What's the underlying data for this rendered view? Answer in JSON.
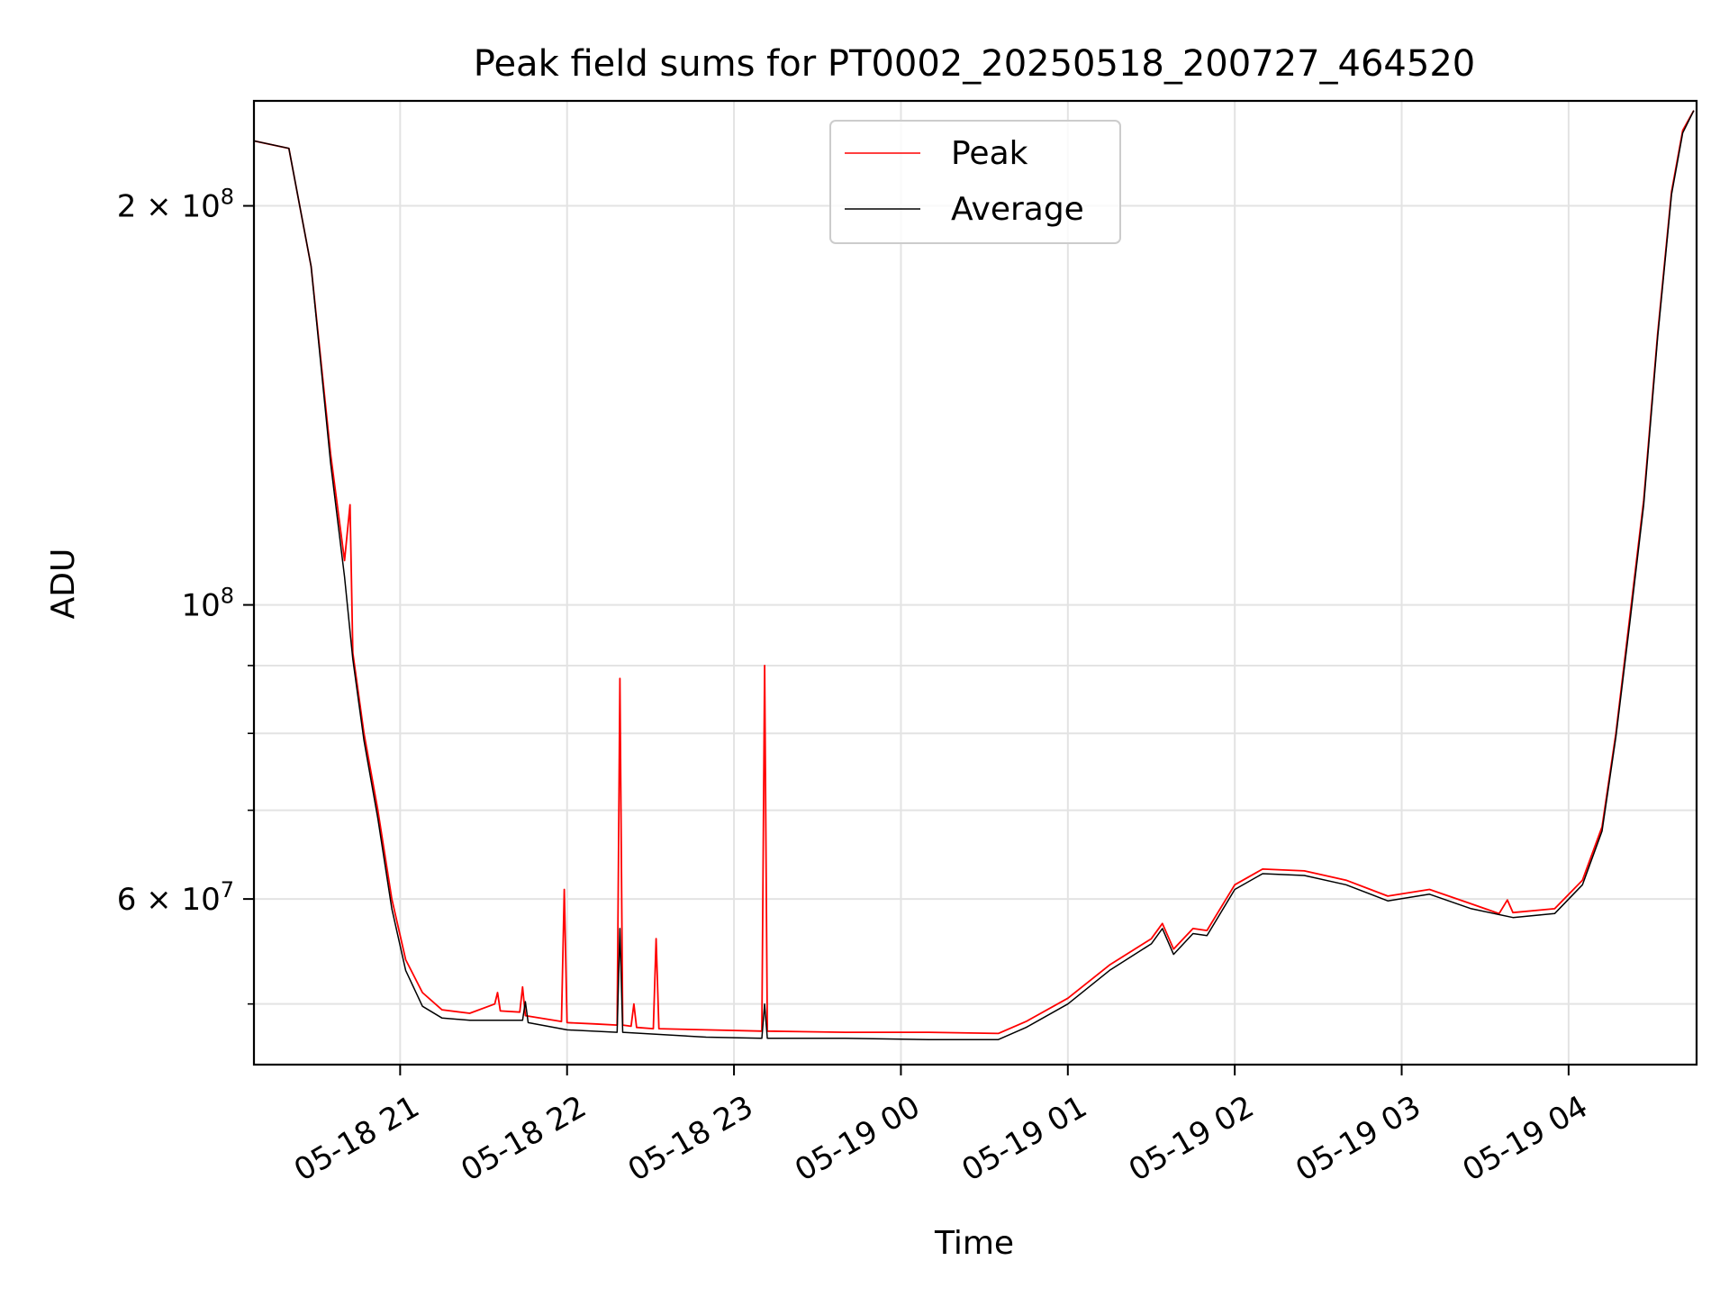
{
  "chart_data": {
    "type": "line",
    "title": "Peak field sums for PT0002_20250518_200727_464520",
    "xlabel": "Time",
    "ylabel": "ADU",
    "yscale": "log",
    "ylim": [
      45000000,
      240000000
    ],
    "xlim": [
      "2025-05-18 20:07:27",
      "2025-05-19 04:46:00"
    ],
    "grid": true,
    "legend_position": "top-center",
    "x_ticks": [
      {
        "label": "05-18 21",
        "time": "2025-05-18 21:00"
      },
      {
        "label": "05-18 22",
        "time": "2025-05-18 22:00"
      },
      {
        "label": "05-18 23",
        "time": "2025-05-18 23:00"
      },
      {
        "label": "05-19 00",
        "time": "2025-05-19 00:00"
      },
      {
        "label": "05-19 01",
        "time": "2025-05-19 01:00"
      },
      {
        "label": "05-19 02",
        "time": "2025-05-19 02:00"
      },
      {
        "label": "05-19 03",
        "time": "2025-05-19 03:00"
      },
      {
        "label": "05-19 04",
        "time": "2025-05-19 04:00"
      }
    ],
    "y_ticks": [
      {
        "value": 200000000,
        "mantissa": "2",
        "exponent": "8"
      },
      {
        "value": 100000000,
        "mantissa": "",
        "exponent": "8"
      },
      {
        "value": 60000000,
        "mantissa": "6",
        "exponent": "7"
      }
    ],
    "y_minor_gridlines": [
      50000000,
      70000000,
      80000000,
      90000000
    ],
    "series": [
      {
        "name": "Peak",
        "color": "#ff0000",
        "points": [
          [
            "2025-05-18 20:07",
            224000000
          ],
          [
            "2025-05-18 20:20",
            221000000
          ],
          [
            "2025-05-18 20:28",
            180000000
          ],
          [
            "2025-05-18 20:35",
            130000000
          ],
          [
            "2025-05-18 20:40",
            108000000
          ],
          [
            "2025-05-18 20:42",
            119000000
          ],
          [
            "2025-05-18 20:43",
            92000000
          ],
          [
            "2025-05-18 20:47",
            80000000
          ],
          [
            "2025-05-18 20:52",
            70000000
          ],
          [
            "2025-05-18 20:57",
            60000000
          ],
          [
            "2025-05-18 21:02",
            54000000
          ],
          [
            "2025-05-18 21:08",
            51000000
          ],
          [
            "2025-05-18 21:15",
            49500000
          ],
          [
            "2025-05-18 21:25",
            49200000
          ],
          [
            "2025-05-18 21:34",
            50000000
          ],
          [
            "2025-05-18 21:35",
            51000000
          ],
          [
            "2025-05-18 21:36",
            49400000
          ],
          [
            "2025-05-18 21:43",
            49300000
          ],
          [
            "2025-05-18 21:44",
            51500000
          ],
          [
            "2025-05-18 21:45",
            49000000
          ],
          [
            "2025-05-18 21:58",
            48500000
          ],
          [
            "2025-05-18 21:59",
            61000000
          ],
          [
            "2025-05-18 22:00",
            48400000
          ],
          [
            "2025-05-18 22:10",
            48300000
          ],
          [
            "2025-05-18 22:18",
            48200000
          ],
          [
            "2025-05-18 22:19",
            88000000
          ],
          [
            "2025-05-18 22:20",
            48200000
          ],
          [
            "2025-05-18 22:23",
            48100000
          ],
          [
            "2025-05-18 22:24",
            50000000
          ],
          [
            "2025-05-18 22:25",
            48000000
          ],
          [
            "2025-05-18 22:31",
            47900000
          ],
          [
            "2025-05-18 22:32",
            56000000
          ],
          [
            "2025-05-18 22:33",
            47900000
          ],
          [
            "2025-05-18 22:50",
            47800000
          ],
          [
            "2025-05-18 23:10",
            47700000
          ],
          [
            "2025-05-18 23:11",
            90000000
          ],
          [
            "2025-05-18 23:12",
            47700000
          ],
          [
            "2025-05-18 23:40",
            47600000
          ],
          [
            "2025-05-19 00:10",
            47600000
          ],
          [
            "2025-05-19 00:35",
            47500000
          ],
          [
            "2025-05-19 00:45",
            48500000
          ],
          [
            "2025-05-19 01:00",
            50500000
          ],
          [
            "2025-05-19 01:15",
            53500000
          ],
          [
            "2025-05-19 01:30",
            56000000
          ],
          [
            "2025-05-19 01:34",
            57500000
          ],
          [
            "2025-05-19 01:38",
            55000000
          ],
          [
            "2025-05-19 01:45",
            57000000
          ],
          [
            "2025-05-19 01:50",
            56800000
          ],
          [
            "2025-05-19 02:00",
            61500000
          ],
          [
            "2025-05-19 02:10",
            63200000
          ],
          [
            "2025-05-19 02:25",
            63000000
          ],
          [
            "2025-05-19 02:40",
            62000000
          ],
          [
            "2025-05-19 02:55",
            60300000
          ],
          [
            "2025-05-19 03:10",
            61000000
          ],
          [
            "2025-05-19 03:25",
            59500000
          ],
          [
            "2025-05-19 03:35",
            58500000
          ],
          [
            "2025-05-19 03:38",
            59900000
          ],
          [
            "2025-05-19 03:40",
            58600000
          ],
          [
            "2025-05-19 03:55",
            59000000
          ],
          [
            "2025-05-19 04:05",
            62000000
          ],
          [
            "2025-05-19 04:12",
            68000000
          ],
          [
            "2025-05-19 04:17",
            80000000
          ],
          [
            "2025-05-19 04:22",
            98000000
          ],
          [
            "2025-05-19 04:27",
            120000000
          ],
          [
            "2025-05-19 04:32",
            160000000
          ],
          [
            "2025-05-19 04:37",
            205000000
          ],
          [
            "2025-05-19 04:41",
            228000000
          ],
          [
            "2025-05-19 04:45",
            236000000
          ]
        ]
      },
      {
        "name": "Average",
        "color": "#000000",
        "points": [
          [
            "2025-05-18 20:07",
            224000000
          ],
          [
            "2025-05-18 20:20",
            221000000
          ],
          [
            "2025-05-18 20:28",
            180000000
          ],
          [
            "2025-05-18 20:35",
            128000000
          ],
          [
            "2025-05-18 20:40",
            105000000
          ],
          [
            "2025-05-18 20:43",
            91000000
          ],
          [
            "2025-05-18 20:47",
            79000000
          ],
          [
            "2025-05-18 20:52",
            69000000
          ],
          [
            "2025-05-18 20:57",
            59000000
          ],
          [
            "2025-05-18 21:02",
            53000000
          ],
          [
            "2025-05-18 21:08",
            49800000
          ],
          [
            "2025-05-18 21:15",
            48800000
          ],
          [
            "2025-05-18 21:25",
            48600000
          ],
          [
            "2025-05-18 21:44",
            48600000
          ],
          [
            "2025-05-18 21:45",
            50200000
          ],
          [
            "2025-05-18 21:46",
            48400000
          ],
          [
            "2025-05-18 22:00",
            47800000
          ],
          [
            "2025-05-18 22:18",
            47600000
          ],
          [
            "2025-05-18 22:19",
            57000000
          ],
          [
            "2025-05-18 22:20",
            47600000
          ],
          [
            "2025-05-18 22:50",
            47200000
          ],
          [
            "2025-05-18 23:10",
            47100000
          ],
          [
            "2025-05-18 23:11",
            50000000
          ],
          [
            "2025-05-18 23:12",
            47100000
          ],
          [
            "2025-05-18 23:40",
            47100000
          ],
          [
            "2025-05-19 00:10",
            47000000
          ],
          [
            "2025-05-19 00:35",
            47000000
          ],
          [
            "2025-05-19 00:45",
            48000000
          ],
          [
            "2025-05-19 01:00",
            50000000
          ],
          [
            "2025-05-19 01:15",
            53000000
          ],
          [
            "2025-05-19 01:30",
            55500000
          ],
          [
            "2025-05-19 01:34",
            57000000
          ],
          [
            "2025-05-19 01:38",
            54500000
          ],
          [
            "2025-05-19 01:45",
            56500000
          ],
          [
            "2025-05-19 01:50",
            56300000
          ],
          [
            "2025-05-19 02:00",
            61000000
          ],
          [
            "2025-05-19 02:10",
            62700000
          ],
          [
            "2025-05-19 02:25",
            62500000
          ],
          [
            "2025-05-19 02:40",
            61500000
          ],
          [
            "2025-05-19 02:55",
            59800000
          ],
          [
            "2025-05-19 03:10",
            60500000
          ],
          [
            "2025-05-19 03:25",
            59000000
          ],
          [
            "2025-05-19 03:40",
            58100000
          ],
          [
            "2025-05-19 03:55",
            58500000
          ],
          [
            "2025-05-19 04:05",
            61500000
          ],
          [
            "2025-05-19 04:12",
            67500000
          ],
          [
            "2025-05-19 04:17",
            79500000
          ],
          [
            "2025-05-19 04:22",
            97000000
          ],
          [
            "2025-05-19 04:27",
            119000000
          ],
          [
            "2025-05-19 04:32",
            159000000
          ],
          [
            "2025-05-19 04:37",
            204000000
          ],
          [
            "2025-05-19 04:41",
            227000000
          ],
          [
            "2025-05-19 04:45",
            236000000
          ]
        ]
      }
    ]
  }
}
